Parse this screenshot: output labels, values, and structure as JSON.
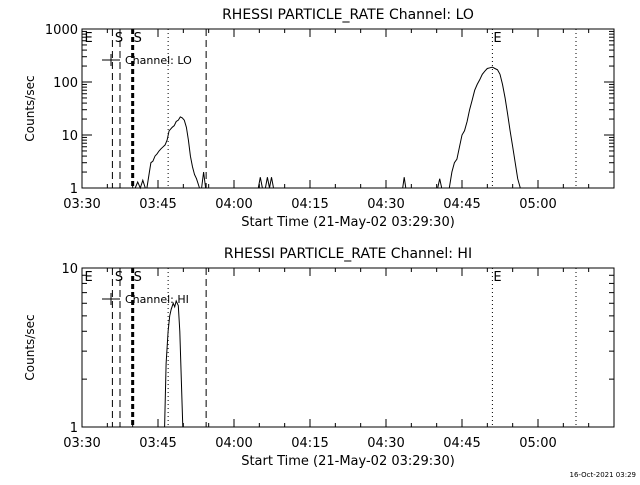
{
  "footer_date": "16-Oct-2021 03:29",
  "chart_data": [
    {
      "type": "line",
      "title": "RHESSI PARTICLE_RATE Channel: LO",
      "xlabel": "Start Time (21-May-02 03:29:30)",
      "ylabel": "Counts/sec",
      "x_unit": "minutes since 03:30",
      "xlim": [
        0,
        105
      ],
      "ylim": [
        1,
        1000
      ],
      "yscale": "log",
      "x_ticks": [
        {
          "t": 0,
          "label": "03:30"
        },
        {
          "t": 15,
          "label": "03:45"
        },
        {
          "t": 30,
          "label": "04:00"
        },
        {
          "t": 45,
          "label": "04:15"
        },
        {
          "t": 60,
          "label": "04:30"
        },
        {
          "t": 75,
          "label": "04:45"
        },
        {
          "t": 90,
          "label": "05:00"
        }
      ],
      "y_ticks": [
        {
          "v": 1,
          "label": "1"
        },
        {
          "v": 10,
          "label": "10"
        },
        {
          "v": 100,
          "label": "100"
        },
        {
          "v": 1000,
          "label": "1000"
        }
      ],
      "legend": {
        "label": "Channel: LO",
        "placement": "top-left"
      },
      "vlines": [
        {
          "t": 6,
          "style": "dashed",
          "label": ""
        },
        {
          "t": 7.5,
          "style": "dashed",
          "label": ""
        },
        {
          "t": 10,
          "style": "thick-dashed",
          "label": "S"
        },
        {
          "t": 17,
          "style": "dotted",
          "label": ""
        },
        {
          "t": 24.5,
          "style": "dashed",
          "label": ""
        },
        {
          "t": 81,
          "style": "dotted",
          "label": "E"
        },
        {
          "t": 97.5,
          "style": "dotted",
          "label": ""
        }
      ],
      "markers": [
        {
          "t": 0.5,
          "label": "E"
        },
        {
          "t": 6.5,
          "label": "S"
        }
      ],
      "segments": [
        {
          "x": [
            10.5,
            11,
            11.5,
            12,
            12.5
          ],
          "y": [
            1,
            1.3,
            1,
            1.4,
            1
          ]
        },
        {
          "x": [
            12.8,
            13.3,
            13.6,
            14,
            14.4,
            14.8,
            15.2,
            15.6,
            16,
            16.4,
            16.8,
            17.2,
            17.8,
            18.2,
            18.6,
            19,
            19.4,
            19.8,
            20.2,
            20.6,
            21,
            21.4,
            21.8,
            22.2,
            22.6,
            23.2
          ],
          "y": [
            1,
            2,
            3,
            3.2,
            4,
            4.4,
            5,
            5.5,
            6,
            6.5,
            8,
            12,
            14,
            15,
            18,
            19,
            22,
            21,
            19,
            14,
            8,
            4,
            2.5,
            1.8,
            1.5,
            1
          ]
        },
        {
          "x": [
            23.6,
            24,
            24.4
          ],
          "y": [
            1,
            2,
            1
          ]
        },
        {
          "x": [
            34.8,
            35.2,
            35.6
          ],
          "y": [
            1,
            1.6,
            1
          ]
        },
        {
          "x": [
            36.2,
            36.6,
            37,
            37.4,
            37.8
          ],
          "y": [
            1,
            1.6,
            1,
            1.6,
            1
          ]
        },
        {
          "x": [
            63.3,
            63.6,
            63.9
          ],
          "y": [
            1,
            1.6,
            1
          ]
        },
        {
          "x": [
            70.2,
            70.6,
            71
          ],
          "y": [
            1,
            1.5,
            1
          ]
        },
        {
          "x": [
            72.5,
            73,
            73.5,
            74,
            74.5,
            75,
            75.5,
            76,
            76.5,
            77,
            77.5,
            78,
            78.5,
            79,
            79.5,
            80,
            80.5,
            81,
            81.5,
            82,
            82.5,
            83,
            83.5,
            84,
            84.5,
            85,
            85.5,
            86,
            86.5
          ],
          "y": [
            1,
            2,
            3,
            3.5,
            6,
            10,
            12,
            18,
            30,
            45,
            70,
            90,
            110,
            140,
            160,
            180,
            185,
            190,
            180,
            170,
            140,
            90,
            50,
            25,
            12,
            6,
            3,
            1.5,
            1
          ]
        }
      ]
    },
    {
      "type": "line",
      "title": "RHESSI PARTICLE_RATE Channel: HI",
      "xlabel": "Start Time (21-May-02 03:29:30)",
      "ylabel": "Counts/sec",
      "x_unit": "minutes since 03:30",
      "xlim": [
        0,
        105
      ],
      "ylim": [
        1,
        10
      ],
      "yscale": "log",
      "x_ticks": [
        {
          "t": 0,
          "label": "03:30"
        },
        {
          "t": 15,
          "label": "03:45"
        },
        {
          "t": 30,
          "label": "04:00"
        },
        {
          "t": 45,
          "label": "04:15"
        },
        {
          "t": 60,
          "label": "04:30"
        },
        {
          "t": 75,
          "label": "04:45"
        },
        {
          "t": 90,
          "label": "05:00"
        }
      ],
      "y_ticks": [
        {
          "v": 1,
          "label": "1"
        },
        {
          "v": 10,
          "label": "10"
        }
      ],
      "legend": {
        "label": "Channel: HI",
        "placement": "top-left"
      },
      "vlines": [
        {
          "t": 6,
          "style": "dashed",
          "label": ""
        },
        {
          "t": 7.5,
          "style": "dashed",
          "label": ""
        },
        {
          "t": 10,
          "style": "thick-dashed",
          "label": "S"
        },
        {
          "t": 17,
          "style": "dotted",
          "label": ""
        },
        {
          "t": 24.5,
          "style": "dashed",
          "label": ""
        },
        {
          "t": 81,
          "style": "dotted",
          "label": "E"
        },
        {
          "t": 97.5,
          "style": "dotted",
          "label": ""
        }
      ],
      "markers": [
        {
          "t": 0.5,
          "label": "E"
        },
        {
          "t": 6.5,
          "label": "S"
        }
      ],
      "segments": [
        {
          "x": [
            16.3,
            16.6,
            17,
            17.3,
            17.6,
            18,
            18.3,
            18.6,
            19,
            19.3,
            19.6,
            19.9
          ],
          "y": [
            1,
            2.5,
            4,
            5,
            5.5,
            6,
            5.7,
            6.2,
            5.8,
            4,
            2,
            1
          ]
        }
      ]
    }
  ]
}
